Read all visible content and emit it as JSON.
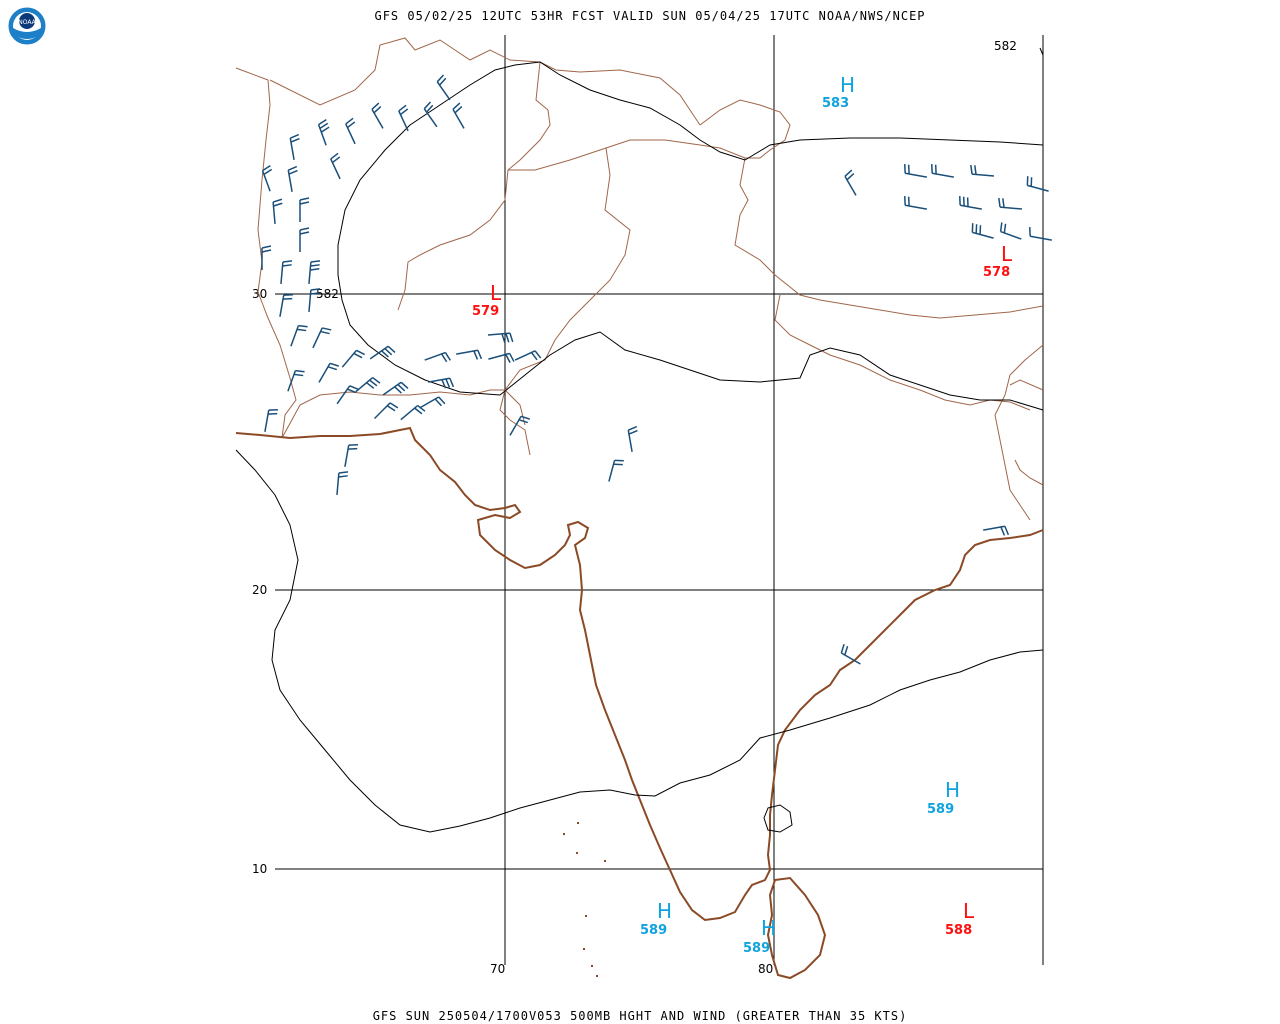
{
  "header": {
    "title": "GFS 05/02/25 12UTC 53HR FCST VALID SUN 05/04/25 17UTC NOAA/NWS/NCEP"
  },
  "footer": {
    "title": "GFS SUN 250504/1700V053 500MB HGHT AND WIND (GREATER THAN 35 KTS)"
  },
  "logo": {
    "text": "NOAA",
    "icon": "noaa-logo-icon"
  },
  "grid": {
    "lat_labels": [
      "30",
      "20",
      "10"
    ],
    "lon_labels": [
      "70",
      "80"
    ]
  },
  "contour_labels": [
    "582",
    "582"
  ],
  "pressure_centers": [
    {
      "type": "H",
      "value": "583"
    },
    {
      "type": "L",
      "value": "579"
    },
    {
      "type": "L",
      "value": "578"
    },
    {
      "type": "H",
      "value": "589"
    },
    {
      "type": "H",
      "value": "589"
    },
    {
      "type": "H",
      "value": "589"
    },
    {
      "type": "L",
      "value": "588"
    }
  ],
  "colors": {
    "coastline": "#8b4a26",
    "borders": "#a0664a",
    "contours": "#000000",
    "barbs": "#1a4f7a",
    "high": "#11a3dd",
    "low": "#ff1010"
  }
}
